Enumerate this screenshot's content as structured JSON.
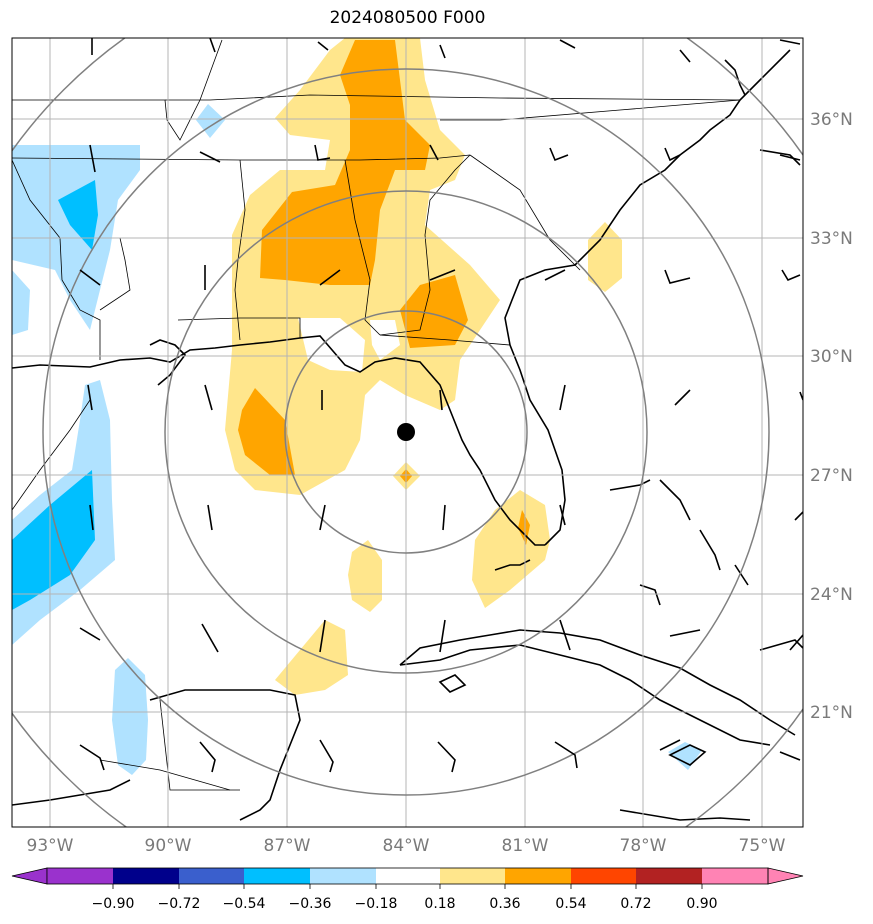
{
  "title": "2024080500 F000",
  "lat_labels": [
    "36°N",
    "33°N",
    "30°N",
    "27°N",
    "24°N",
    "21°N"
  ],
  "lon_labels": [
    "93°W",
    "90°W",
    "87°W",
    "84°W",
    "81°W",
    "78°W",
    "75°W"
  ],
  "colorbar": {
    "ticks": [
      "−0.90",
      "−0.72",
      "−0.54",
      "−0.36",
      "−0.18",
      "0.18",
      "0.36",
      "0.54",
      "0.72",
      "0.90"
    ],
    "colors": [
      "#9a32cd",
      "#00008b",
      "#3a5fcd",
      "#00bfff",
      "#b0e2ff",
      "#ffffff",
      "#ffe68c",
      "#ffa500",
      "#ff4500",
      "#b22222",
      "#ff83b4"
    ]
  },
  "storm_center": {
    "lat": 28.1,
    "lon": -84.0
  },
  "colors": {
    "pos_light": "#ffe68c",
    "pos_mid": "#ffa500",
    "neg_light": "#b0e2ff",
    "neg_mid": "#00bfff",
    "grid": "#b4b4b4",
    "ring": "#808080"
  }
}
